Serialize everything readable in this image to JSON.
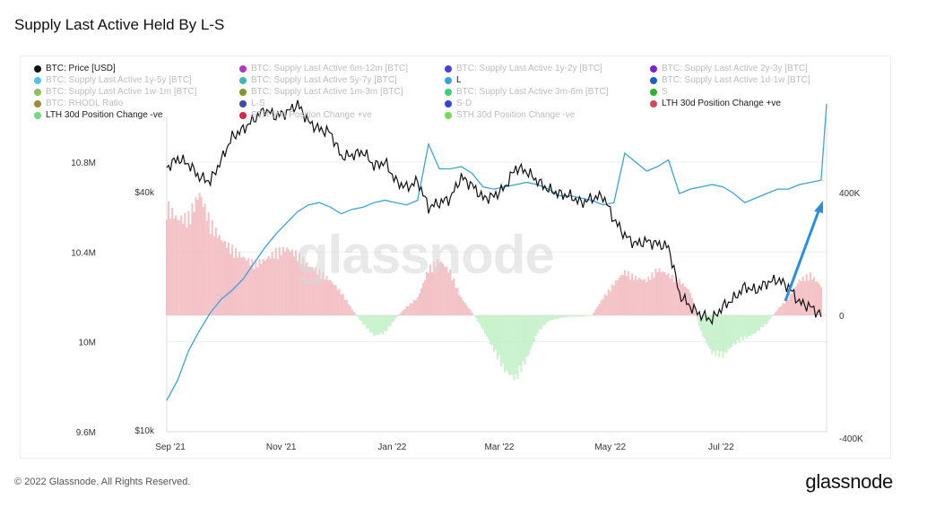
{
  "page": {
    "title": "Supply Last Active Held By L-S",
    "copyright": "© 2022 Glassnode. All Rights Reserved.",
    "brand": "glassnode",
    "watermark": "glassnode"
  },
  "legend": [
    {
      "label": "BTC: Price [USD]",
      "color": "#111111",
      "active": true
    },
    {
      "label": "BTC: Supply Last Active 6m-12m [BTC]",
      "color": "#b436c9",
      "active": false
    },
    {
      "label": "BTC: Supply Last Active 1y-2y [BTC]",
      "color": "#4a3fd9",
      "active": false
    },
    {
      "label": "BTC: Supply Last Active 2y-3y [BTC]",
      "color": "#7b22c9",
      "active": false
    },
    {
      "label": "BTC: Supply Last Active 1y-5y [BTC]",
      "color": "#4fc3e8",
      "active": false
    },
    {
      "label": "BTC: Supply Last Active 5y-7y [BTC]",
      "color": "#3fb8b0",
      "active": false
    },
    {
      "label": "L",
      "color": "#3aa4d8",
      "active": true
    },
    {
      "label": "BTC: Supply Last Active 1d-1w [BTC]",
      "color": "#1f5fbf",
      "active": false
    },
    {
      "label": "BTC: Supply Last Active 1w-1m [BTC]",
      "color": "#8fc15a",
      "active": false
    },
    {
      "label": "BTC: Supply Last Active 1m-3m [BTC]",
      "color": "#7d9a2a",
      "active": false
    },
    {
      "label": "BTC: Supply Last Active 3m-6m [BTC]",
      "color": "#3cd07a",
      "active": false
    },
    {
      "label": "S",
      "color": "#2bb52b",
      "active": false
    },
    {
      "label": "BTC: RHODL Ratio",
      "color": "#a08a3a",
      "active": false
    },
    {
      "label": "L-S",
      "color": "#3b4aa8",
      "active": false
    },
    {
      "label": "S-D",
      "color": "#2f46d6",
      "active": false
    },
    {
      "label": "LTH 30d Position Change +ve",
      "color": "#d1495b",
      "active": true
    },
    {
      "label": "LTH 30d Position Change -ve",
      "color": "#6fdc7a",
      "active": true
    },
    {
      "label": "STH 30d Position Change +ve",
      "color": "#d42a4a",
      "active": false
    },
    {
      "label": "STH 30d Position Change -ve",
      "color": "#6fdc5a",
      "active": false
    }
  ],
  "chart_data": {
    "type": "line",
    "x_ticks": [
      "Sep '21",
      "Nov '21",
      "Jan '22",
      "Mar '22",
      "May '22",
      "Jul '22"
    ],
    "y_left_outer_ticks": [
      "10.8M",
      "10.4M",
      "10M",
      "9.6M"
    ],
    "y_left_inner_ticks": [
      "$40k",
      "$10k"
    ],
    "y_right_ticks": [
      "400K",
      "0",
      "-400K"
    ],
    "y_left_outer_range": [
      9600000,
      11200000
    ],
    "y_right_range": [
      -400000,
      650000
    ],
    "series": [
      {
        "name": "BTC: Price [USD]",
        "color": "#111111",
        "points": [
          [
            0,
            46000
          ],
          [
            6,
            48500
          ],
          [
            12,
            47000
          ],
          [
            18,
            43500
          ],
          [
            24,
            42500
          ],
          [
            30,
            48000
          ],
          [
            36,
            55000
          ],
          [
            42,
            57500
          ],
          [
            48,
            61000
          ],
          [
            54,
            64500
          ],
          [
            60,
            62000
          ],
          [
            66,
            63500
          ],
          [
            72,
            66500
          ],
          [
            78,
            60000
          ],
          [
            84,
            57500
          ],
          [
            90,
            56500
          ],
          [
            96,
            49000
          ],
          [
            102,
            49500
          ],
          [
            108,
            50500
          ],
          [
            114,
            46500
          ],
          [
            120,
            47500
          ],
          [
            126,
            42500
          ],
          [
            132,
            41000
          ],
          [
            138,
            42500
          ],
          [
            144,
            36500
          ],
          [
            150,
            37500
          ],
          [
            156,
            38500
          ],
          [
            162,
            43500
          ],
          [
            168,
            41500
          ],
          [
            174,
            38500
          ],
          [
            180,
            39000
          ],
          [
            186,
            41000
          ],
          [
            192,
            46000
          ],
          [
            198,
            45000
          ],
          [
            204,
            42500
          ],
          [
            210,
            40500
          ],
          [
            216,
            39500
          ],
          [
            222,
            39000
          ],
          [
            228,
            37500
          ],
          [
            234,
            38500
          ],
          [
            240,
            39000
          ],
          [
            246,
            34000
          ],
          [
            252,
            31000
          ],
          [
            258,
            29500
          ],
          [
            264,
            30000
          ],
          [
            270,
            29500
          ],
          [
            276,
            29000
          ],
          [
            282,
            22000
          ],
          [
            288,
            20500
          ],
          [
            294,
            19500
          ],
          [
            300,
            19000
          ],
          [
            306,
            20500
          ],
          [
            312,
            21500
          ],
          [
            318,
            23000
          ],
          [
            324,
            22500
          ],
          [
            330,
            23500
          ],
          [
            336,
            24000
          ],
          [
            342,
            23000
          ],
          [
            348,
            21000
          ],
          [
            354,
            20500
          ],
          [
            360,
            19500
          ]
        ]
      },
      {
        "name": "L",
        "color": "#3aa4d8",
        "points": [
          [
            0,
            9740000
          ],
          [
            6,
            9830000
          ],
          [
            12,
            9960000
          ],
          [
            18,
            10050000
          ],
          [
            24,
            10130000
          ],
          [
            30,
            10190000
          ],
          [
            36,
            10230000
          ],
          [
            42,
            10280000
          ],
          [
            48,
            10350000
          ],
          [
            54,
            10420000
          ],
          [
            60,
            10480000
          ],
          [
            66,
            10530000
          ],
          [
            72,
            10580000
          ],
          [
            78,
            10610000
          ],
          [
            84,
            10620000
          ],
          [
            90,
            10600000
          ],
          [
            96,
            10570000
          ],
          [
            102,
            10590000
          ],
          [
            108,
            10600000
          ],
          [
            114,
            10620000
          ],
          [
            120,
            10630000
          ],
          [
            126,
            10620000
          ],
          [
            132,
            10610000
          ],
          [
            138,
            10630000
          ],
          [
            144,
            10880000
          ],
          [
            150,
            10770000
          ],
          [
            156,
            10770000
          ],
          [
            162,
            10780000
          ],
          [
            168,
            10750000
          ],
          [
            174,
            10690000
          ],
          [
            180,
            10680000
          ],
          [
            186,
            10690000
          ],
          [
            192,
            10700000
          ],
          [
            198,
            10710000
          ],
          [
            204,
            10700000
          ],
          [
            210,
            10680000
          ],
          [
            216,
            10650000
          ],
          [
            222,
            10650000
          ],
          [
            228,
            10640000
          ],
          [
            234,
            10630000
          ],
          [
            240,
            10610000
          ],
          [
            246,
            10620000
          ],
          [
            252,
            10840000
          ],
          [
            258,
            10800000
          ],
          [
            264,
            10760000
          ],
          [
            270,
            10780000
          ],
          [
            276,
            10810000
          ],
          [
            282,
            10660000
          ],
          [
            288,
            10680000
          ],
          [
            294,
            10690000
          ],
          [
            300,
            10700000
          ],
          [
            306,
            10690000
          ],
          [
            312,
            10660000
          ],
          [
            318,
            10620000
          ],
          [
            324,
            10640000
          ],
          [
            330,
            10660000
          ],
          [
            336,
            10680000
          ],
          [
            342,
            10680000
          ],
          [
            348,
            10700000
          ],
          [
            354,
            10710000
          ],
          [
            360,
            10720000
          ],
          [
            363,
            11060000
          ]
        ]
      },
      {
        "name": "LTH 30d Position Change",
        "color_positive": "#f1b9be",
        "color_negative": "#bff0c4",
        "points": [
          [
            0,
            380000
          ],
          [
            6,
            330000
          ],
          [
            12,
            340000
          ],
          [
            18,
            420000
          ],
          [
            24,
            320000
          ],
          [
            30,
            260000
          ],
          [
            36,
            230000
          ],
          [
            42,
            200000
          ],
          [
            48,
            180000
          ],
          [
            54,
            190000
          ],
          [
            60,
            220000
          ],
          [
            66,
            230000
          ],
          [
            72,
            210000
          ],
          [
            78,
            170000
          ],
          [
            84,
            150000
          ],
          [
            90,
            120000
          ],
          [
            96,
            80000
          ],
          [
            102,
            20000
          ],
          [
            108,
            -30000
          ],
          [
            114,
            -70000
          ],
          [
            120,
            -60000
          ],
          [
            126,
            -10000
          ],
          [
            132,
            30000
          ],
          [
            138,
            60000
          ],
          [
            144,
            160000
          ],
          [
            150,
            190000
          ],
          [
            156,
            150000
          ],
          [
            162,
            60000
          ],
          [
            168,
            10000
          ],
          [
            174,
            -50000
          ],
          [
            180,
            -120000
          ],
          [
            186,
            -190000
          ],
          [
            192,
            -220000
          ],
          [
            198,
            -150000
          ],
          [
            204,
            -60000
          ],
          [
            210,
            -20000
          ],
          [
            216,
            -10000
          ],
          [
            222,
            -5000
          ],
          [
            228,
            -5000
          ],
          [
            234,
            0
          ],
          [
            240,
            60000
          ],
          [
            246,
            110000
          ],
          [
            252,
            150000
          ],
          [
            258,
            130000
          ],
          [
            264,
            120000
          ],
          [
            270,
            160000
          ],
          [
            276,
            140000
          ],
          [
            282,
            120000
          ],
          [
            288,
            80000
          ],
          [
            294,
            -60000
          ],
          [
            300,
            -130000
          ],
          [
            306,
            -140000
          ],
          [
            312,
            -100000
          ],
          [
            318,
            -80000
          ],
          [
            324,
            -60000
          ],
          [
            330,
            -30000
          ],
          [
            336,
            20000
          ],
          [
            342,
            60000
          ],
          [
            348,
            120000
          ],
          [
            354,
            140000
          ],
          [
            360,
            100000
          ]
        ]
      }
    ]
  }
}
